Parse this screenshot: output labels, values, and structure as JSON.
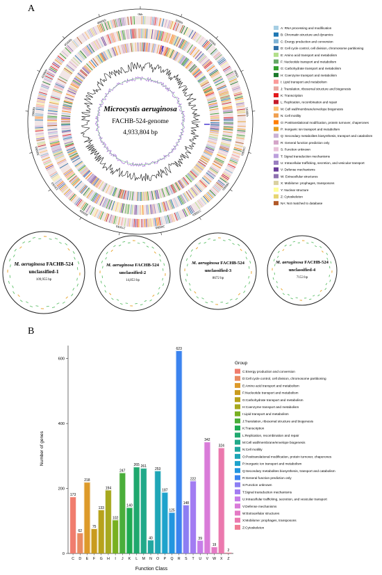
{
  "panel_a": {
    "label": "A",
    "genome": {
      "species": "Microcystis aeruginosa",
      "strain_line": "FACHB-524-genome",
      "size_line": "4,933,804 bp"
    },
    "ring_ticks": [
      "0kb",
      "300kb",
      "600kb",
      "900kb",
      "1200kb",
      "1500kb",
      "1800kb",
      "2100kb",
      "2400kb",
      "2700kb",
      "3000kb",
      "3300kb",
      "3600kb",
      "3900kb",
      "4200kb",
      "4500kb",
      "4800kb"
    ],
    "legend": [
      {
        "label": "A: RNA processing and modification",
        "color": "#a6cee3"
      },
      {
        "label": "B: Chromatin structure and dynamics",
        "color": "#1f78b4"
      },
      {
        "label": "C: Energy production and conversion",
        "color": "#7fb3d5"
      },
      {
        "label": "D: Cell cycle control, cell division, chromosome partitioning",
        "color": "#2e6fa7"
      },
      {
        "label": "E: Amino acid transport and metabolism",
        "color": "#b2df8a"
      },
      {
        "label": "F: Nucleotide transport and metabolism",
        "color": "#66a866"
      },
      {
        "label": "G: Carbohydrate transport and metabolism",
        "color": "#33a02c"
      },
      {
        "label": "H: Coenzyme transport and metabolism",
        "color": "#1b7a2a"
      },
      {
        "label": "I: Lipid transport and metabolism",
        "color": "#fb9a99"
      },
      {
        "label": "J: Translation, ribosomal structure and biogenesis",
        "color": "#e8a7a0"
      },
      {
        "label": "K: Transcription",
        "color": "#e31a1c"
      },
      {
        "label": "L: Replication, recombination and repair",
        "color": "#c51b2a"
      },
      {
        "label": "M: Cell wall/membrane/envelope biogenesis",
        "color": "#fdbf6f"
      },
      {
        "label": "N: Cell motility",
        "color": "#f0a050"
      },
      {
        "label": "O: Posttranslational modification, protein turnover, chaperones",
        "color": "#ff7f00"
      },
      {
        "label": "P: Inorganic ion transport and metabolism",
        "color": "#e6a020"
      },
      {
        "label": "Q: Secondary metabolites biosynthesis, transport and catabolism",
        "color": "#cab2d6"
      },
      {
        "label": "R: General function prediction only",
        "color": "#d4a5c8"
      },
      {
        "label": "S: Function unknown",
        "color": "#e8c0d8"
      },
      {
        "label": "T: Signal transduction mechanisms",
        "color": "#bca0dc"
      },
      {
        "label": "U: Intracellular trafficking, secretion, and vesicular transport",
        "color": "#9a7fc0"
      },
      {
        "label": "V: Defense mechanisms",
        "color": "#6a3d9a"
      },
      {
        "label": "W: Extracellular structures",
        "color": "#8f72b0"
      },
      {
        "label": "X: Mobilome: prophages, transposons",
        "color": "#d9d0a0"
      },
      {
        "label": "Y: Nuclear structure",
        "color": "#ffff99"
      },
      {
        "label": "Z: Cytoskeleton",
        "color": "#e6d470"
      },
      {
        "label": "NA: Not matched to database",
        "color": "#b15928"
      }
    ],
    "contigs": [
      {
        "species": "M. aeruginosa",
        "strain": "FACHB-524",
        "name": "unclassified-1",
        "size": "109,955 bp"
      },
      {
        "species": "M. aeruginosa",
        "strain": "FACHB-524",
        "name": "unclassified-2",
        "size": "14,853 bp"
      },
      {
        "species": "M. aeruginosa",
        "strain": "FACHB-524",
        "name": "unclassified-3",
        "size": "8672 bp"
      },
      {
        "species": "M. aeruginosa",
        "strain": "FACHB-524",
        "name": "unclassified-4",
        "size": "7153 bp"
      }
    ]
  },
  "panel_b": {
    "label": "B",
    "legend_title": "Group"
  },
  "chart_data": {
    "type": "bar",
    "title": "",
    "xlabel": "Function Class",
    "ylabel": "Number of genes",
    "ylim": [
      0,
      640
    ],
    "yticks": [
      0,
      200,
      400,
      600
    ],
    "categories": [
      "C",
      "D",
      "E",
      "F",
      "G",
      "H",
      "I",
      "J",
      "K",
      "L",
      "M",
      "N",
      "O",
      "P",
      "Q",
      "R",
      "S",
      "T",
      "U",
      "V",
      "W",
      "X",
      "Z"
    ],
    "values": [
      173,
      62,
      218,
      75,
      133,
      194,
      102,
      247,
      140,
      265,
      261,
      40,
      253,
      187,
      125,
      623,
      148,
      222,
      39,
      342,
      19,
      324,
      2
    ],
    "colors": [
      "#f07d6e",
      "#e98b62",
      "#dd9a2a",
      "#c99b1e",
      "#b7a21b",
      "#a7a91f",
      "#78b021",
      "#4aae3a",
      "#1eaa52",
      "#1fa86e",
      "#21a989",
      "#21a7a0",
      "#1fa6b7",
      "#1ea3cc",
      "#2295df",
      "#3b83ef",
      "#8c7ef3",
      "#a27cf2",
      "#c67de8",
      "#d97bd9",
      "#e47ac4",
      "#eb79ae",
      "#f07c94"
    ],
    "series_legend": [
      "C:Energy production and conversion",
      "D:Cell cycle control, cell division, chromosome partitioning",
      "E:Amino acid transport and metabolism",
      "F:Nucleotide transport and metabolism",
      "G:Carbohydrate transport and metabolism",
      "H:Coenzyme transport and metabolism",
      "I:Lipid transport and metabolism",
      "J:Translation, ribosomal structure and biogenesis",
      "K:Transcription",
      "L:Replication, recombination and repair",
      "M:Cell wall/membrane/envelope biogenesis",
      "N:Cell motility",
      "O:Posttranslational modification, protein turnover, chaperones",
      "P:Inorganic ion transport and metabolism",
      "Q:Secondary metabolites biosynthesis, transport and catabolism",
      "R:General function prediction only",
      "S:Function unknown",
      "T:Signal transduction mechanisms",
      "U:Intracellular trafficking, secretion, and vesicular transport",
      "V:Defense mechanisms",
      "W:Extracellular structures",
      "X:Mobilome: prophages, transposons",
      "Z:Cytoskeleton"
    ],
    "grid": false,
    "legend_position": "right"
  }
}
